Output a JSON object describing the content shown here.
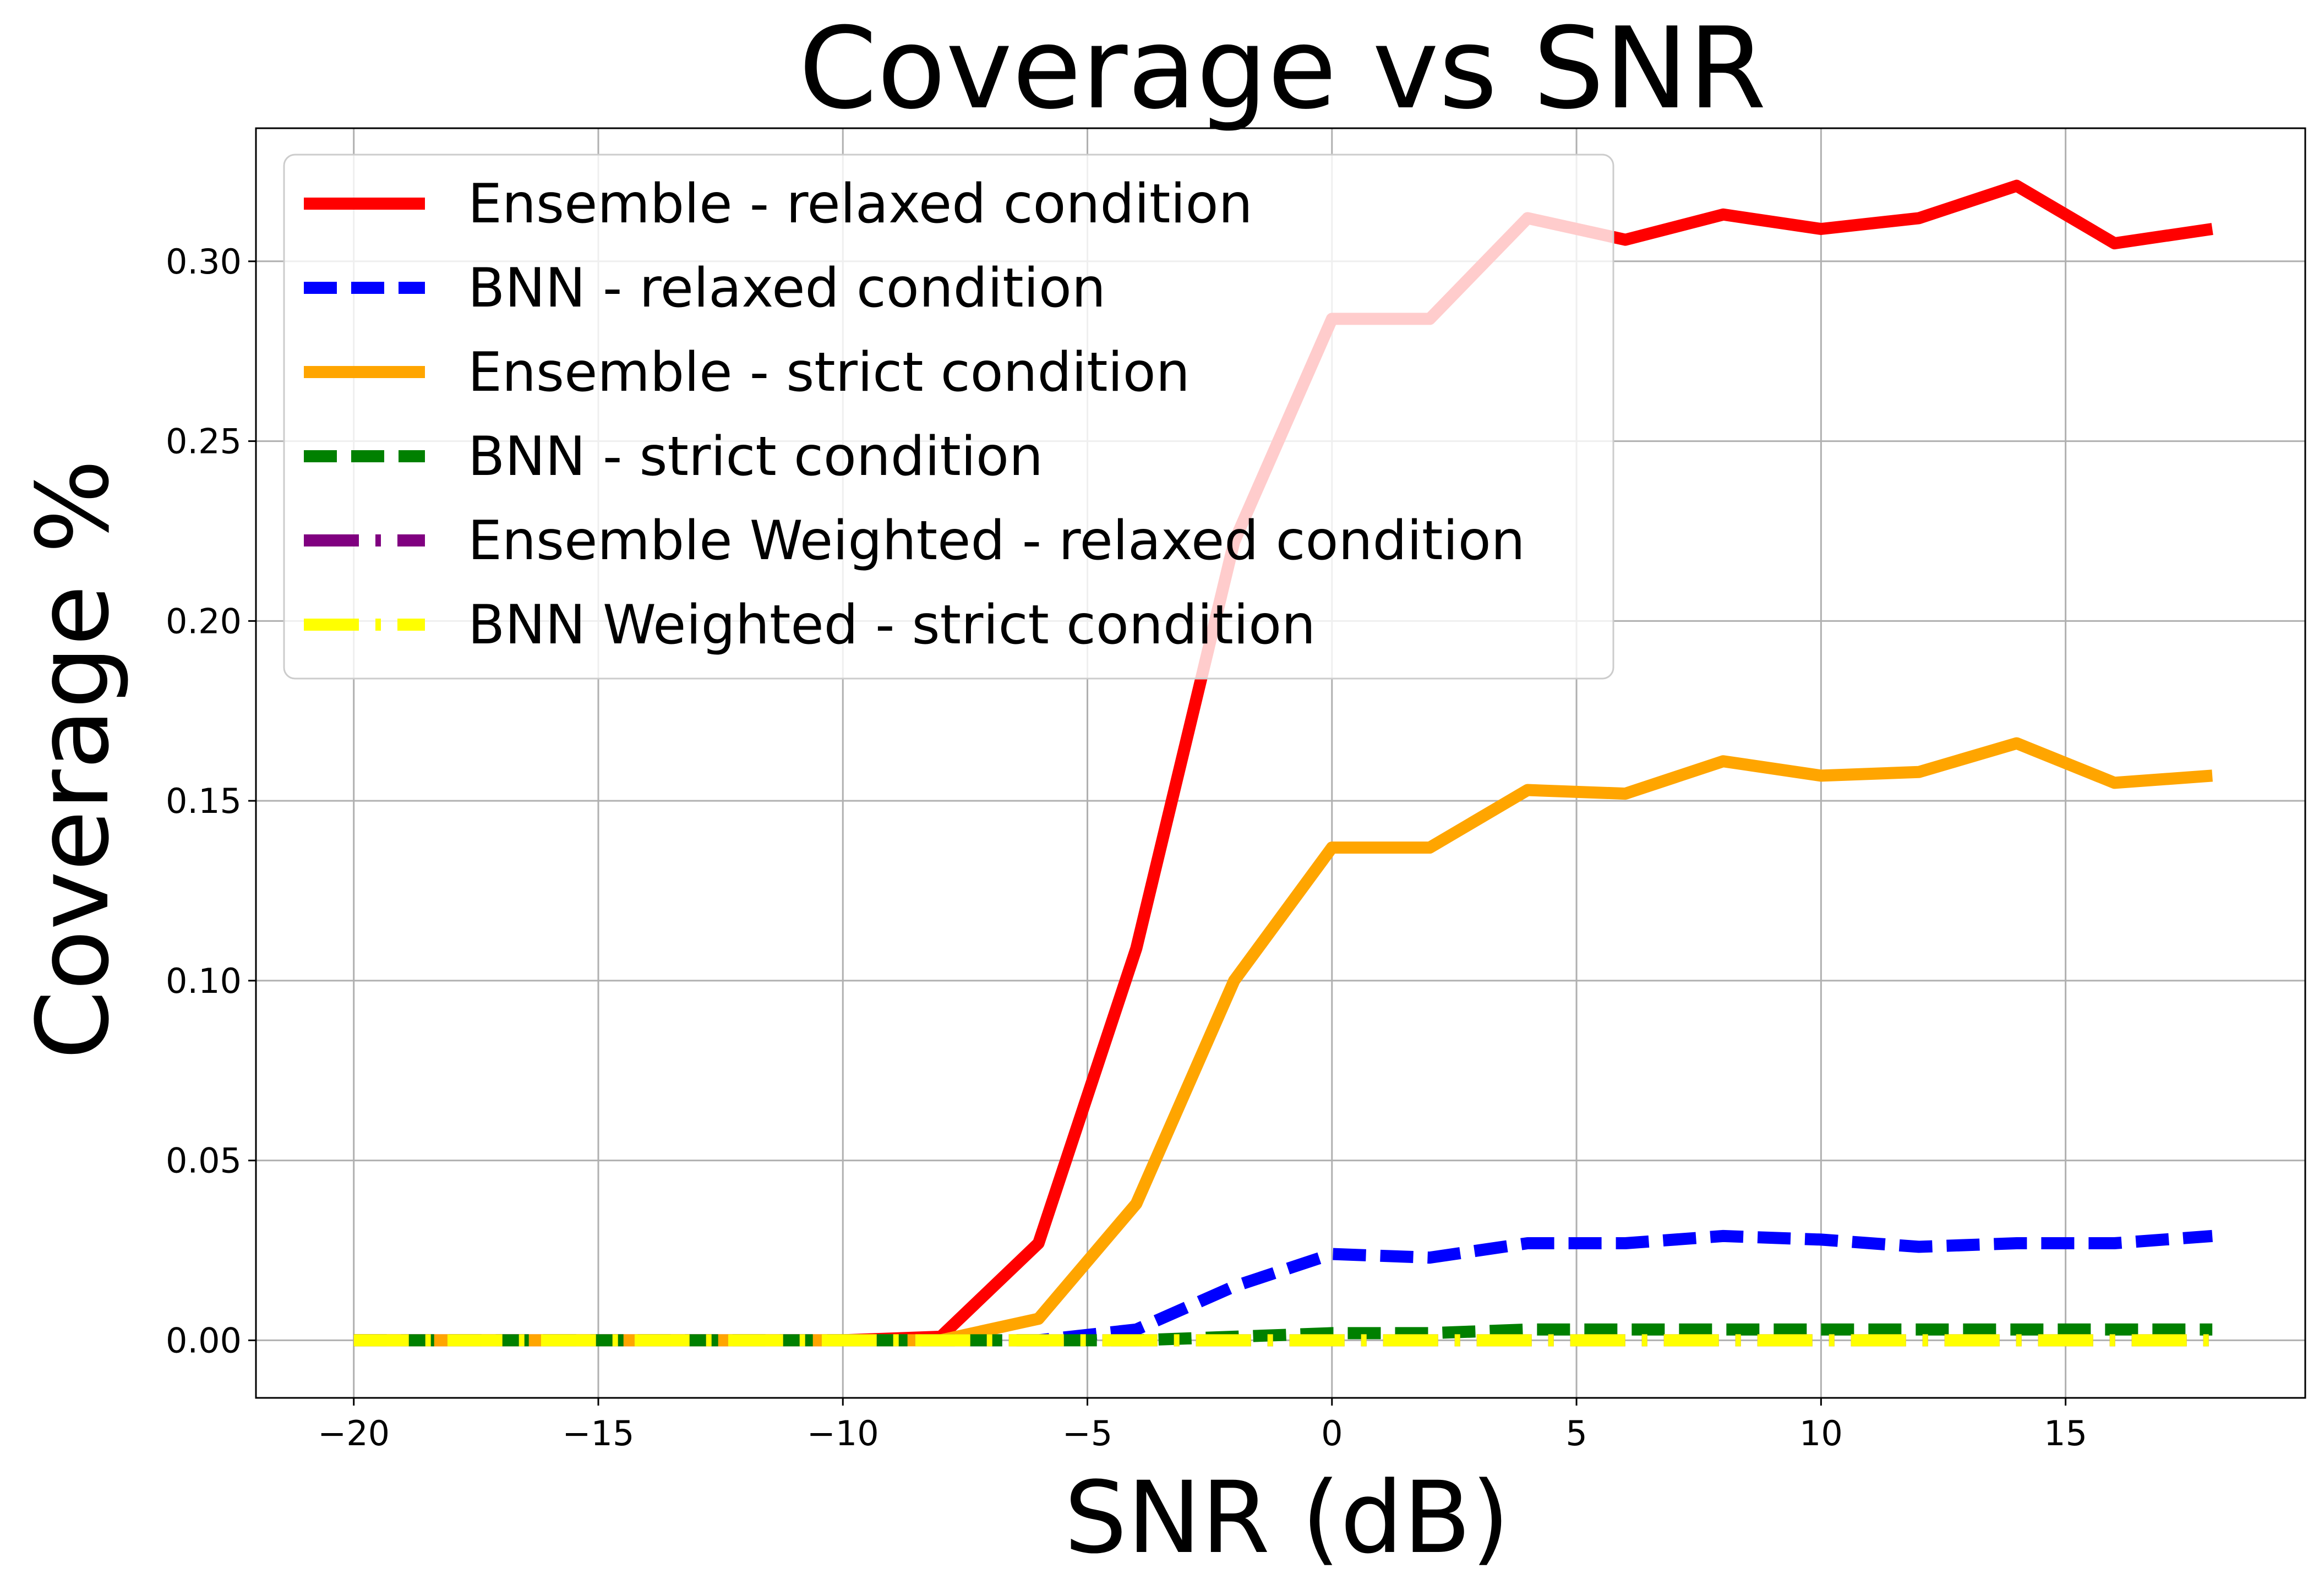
{
  "chart_data": {
    "type": "line",
    "title": "Coverage vs SNR",
    "xlabel": "SNR (dB)",
    "ylabel": "Coverage %",
    "xlim": [
      -22,
      19.9
    ],
    "ylim": [
      -0.016,
      0.337
    ],
    "xticks": [
      -20,
      -15,
      -10,
      -5,
      0,
      5,
      10,
      15
    ],
    "xtick_labels": [
      "−20",
      "−15",
      "−10",
      "−5",
      "0",
      "5",
      "10",
      "15"
    ],
    "yticks": [
      0.0,
      0.05,
      0.1,
      0.15,
      0.2,
      0.25,
      0.3
    ],
    "ytick_labels": [
      "0.00",
      "0.05",
      "0.10",
      "0.15",
      "0.20",
      "0.25",
      "0.30"
    ],
    "grid": true,
    "legend_position": "top-left",
    "x": [
      -20,
      -18,
      -16,
      -14,
      -12,
      -10,
      -8,
      -6,
      -4,
      -2,
      0,
      2,
      4,
      6,
      8,
      10,
      12,
      14,
      16,
      18
    ],
    "series": [
      {
        "name": "Ensemble - relaxed condition",
        "color": "#ff0000",
        "style": "solid",
        "values": [
          0,
          0,
          0,
          0,
          0,
          0,
          0.001,
          0.027,
          0.109,
          0.222,
          0.284,
          0.284,
          0.312,
          0.306,
          0.313,
          0.309,
          0.312,
          0.321,
          0.305,
          0.309
        ]
      },
      {
        "name": "BNN - relaxed condition",
        "color": "#0000ff",
        "style": "dashed",
        "values": [
          0,
          0,
          0,
          0,
          0,
          0,
          0,
          0,
          0.003,
          0.015,
          0.024,
          0.023,
          0.027,
          0.027,
          0.029,
          0.028,
          0.026,
          0.027,
          0.027,
          0.029
        ]
      },
      {
        "name": "Ensemble - strict condition",
        "color": "#ffa500",
        "style": "solid",
        "values": [
          0,
          0,
          0,
          0,
          0,
          0,
          0,
          0.006,
          0.038,
          0.1,
          0.137,
          0.137,
          0.153,
          0.152,
          0.161,
          0.157,
          0.158,
          0.166,
          0.155,
          0.157
        ]
      },
      {
        "name": "BNN - strict condition",
        "color": "#008000",
        "style": "dashed",
        "values": [
          0,
          0,
          0,
          0,
          0,
          0,
          0,
          0,
          0,
          0.001,
          0.002,
          0.002,
          0.003,
          0.003,
          0.003,
          0.003,
          0.003,
          0.003,
          0.003,
          0.003
        ]
      },
      {
        "name": "Ensemble Weighted - relaxed condition",
        "color": "#800080",
        "style": "dashdot",
        "values": [
          0,
          0,
          0,
          0,
          0,
          0,
          0,
          0,
          0,
          0,
          0,
          0,
          0,
          0,
          0,
          0,
          0,
          0,
          0,
          0
        ]
      },
      {
        "name": "BNN Weighted - strict condition",
        "color": "#ffff00",
        "style": "dashdot",
        "values": [
          0,
          0,
          0,
          0,
          0,
          0,
          0,
          0,
          0,
          0,
          0,
          0,
          0,
          0,
          0,
          0,
          0,
          0,
          0,
          0
        ]
      }
    ]
  }
}
